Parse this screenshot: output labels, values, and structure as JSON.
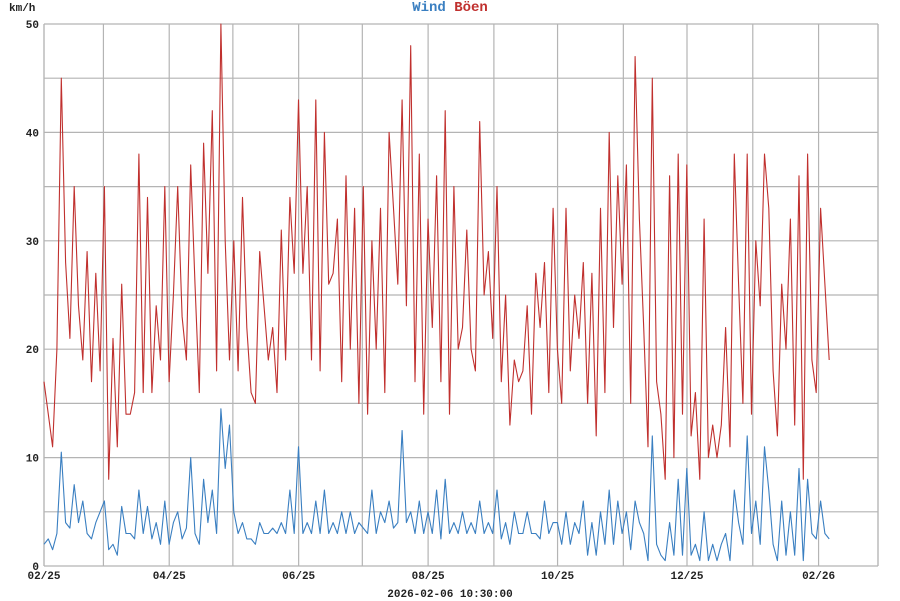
{
  "header": {
    "unit": "km/h",
    "legend_wind": "Wind",
    "legend_gust": "Böen"
  },
  "footer": {
    "timestamp": "2026-02-06 10:30:00"
  },
  "colors": {
    "wind": "#3a7fc1",
    "gust": "#c0302e",
    "grid": "#b4b4b4"
  },
  "chart_data": {
    "type": "line",
    "title": "Wind Böen",
    "ylabel": "km/h",
    "xlabel": "2026-02-06 10:30:00",
    "ylim": [
      0,
      50
    ],
    "y_grid_step": 5,
    "y_ticks": [
      0,
      10,
      20,
      30,
      40,
      50
    ],
    "x_start": "2025-02-01",
    "x_end_data": "2026-02-06",
    "xlim": [
      "2025-02-01",
      "2026-03-01"
    ],
    "x_ticks": [
      "02/25",
      "04/25",
      "06/25",
      "08/25",
      "10/25",
      "12/25",
      "02/26"
    ],
    "grid": true,
    "legend": "top-center",
    "series": [
      {
        "name": "Wind",
        "values": [
          2,
          2.5,
          1.5,
          3,
          10.5,
          4,
          3.5,
          7.5,
          4,
          6,
          3,
          2.5,
          4,
          5,
          6,
          1.5,
          2,
          1,
          5.5,
          3,
          3,
          2.5,
          7,
          3,
          5.5,
          2.5,
          4,
          2,
          6,
          2,
          4,
          5,
          2.5,
          3.5,
          10,
          3,
          2,
          8,
          4,
          7,
          3,
          14.5,
          9,
          13,
          5,
          3,
          4,
          2.5,
          2.5,
          2,
          4,
          3,
          3,
          3.5,
          3,
          4,
          3,
          7,
          3,
          11,
          3,
          4,
          3,
          6,
          3,
          7,
          3,
          4,
          3,
          5,
          3,
          5,
          3,
          4,
          3.5,
          3,
          7,
          3,
          5,
          4,
          6,
          3.5,
          4,
          12.5,
          4,
          5,
          3,
          6,
          3,
          5,
          3,
          7,
          2.5,
          8,
          3,
          4,
          3,
          5,
          3,
          4,
          3,
          6,
          3,
          4,
          3,
          7,
          2.5,
          4,
          2,
          5,
          3,
          3,
          5,
          3,
          3,
          2.5,
          6,
          3,
          4,
          4,
          2,
          5,
          2,
          4,
          3,
          6,
          1,
          4,
          1,
          5,
          2,
          7,
          2,
          6,
          3,
          5,
          1.5,
          6,
          4,
          3,
          0.5,
          12,
          2,
          1,
          0.5,
          4,
          1,
          8,
          1,
          9,
          1,
          2,
          0.5,
          5,
          0.5,
          2,
          0.5,
          2,
          3,
          0.5,
          7,
          4,
          2,
          12,
          3,
          6,
          2,
          11,
          7,
          2,
          0.5,
          6,
          1,
          5,
          1,
          9,
          0.5,
          8,
          3,
          2.5,
          6,
          3,
          2.5
        ]
      },
      {
        "name": "Böen",
        "values": [
          17,
          14,
          11,
          20,
          45,
          28,
          21,
          35,
          24,
          19,
          29,
          17,
          27,
          18,
          35,
          8,
          21,
          11,
          26,
          14,
          14,
          16,
          38,
          16,
          34,
          16,
          24,
          19,
          35,
          17,
          25,
          35,
          23,
          19,
          37,
          26,
          16,
          39,
          27,
          42,
          18,
          50,
          30,
          19,
          30,
          18,
          34,
          22,
          16,
          15,
          29,
          24,
          19,
          22,
          16,
          31,
          19,
          34,
          27,
          43,
          27,
          35,
          19,
          43,
          18,
          40,
          26,
          27,
          32,
          17,
          36,
          20,
          33,
          15,
          35,
          14,
          30,
          20,
          33,
          16,
          40,
          33,
          26,
          43,
          24,
          48,
          17,
          38,
          14,
          32,
          22,
          36,
          17,
          42,
          14,
          35,
          20,
          22,
          31,
          20,
          18,
          41,
          25,
          29,
          21,
          35,
          17,
          25,
          13,
          19,
          17,
          18,
          24,
          14,
          27,
          22,
          28,
          16,
          33,
          20,
          15,
          33,
          18,
          25,
          21,
          28,
          15,
          27,
          12,
          33,
          16,
          40,
          22,
          36,
          26,
          37,
          15,
          47,
          32,
          22,
          11,
          45,
          17,
          14,
          8,
          36,
          10,
          38,
          14,
          37,
          12,
          16,
          8,
          32,
          10,
          13,
          10,
          13,
          22,
          11,
          38,
          26,
          15,
          38,
          14,
          30,
          24,
          38,
          33,
          18,
          12,
          26,
          20,
          32,
          13,
          36,
          8,
          38,
          19,
          16,
          33,
          26,
          19
        ]
      }
    ]
  }
}
